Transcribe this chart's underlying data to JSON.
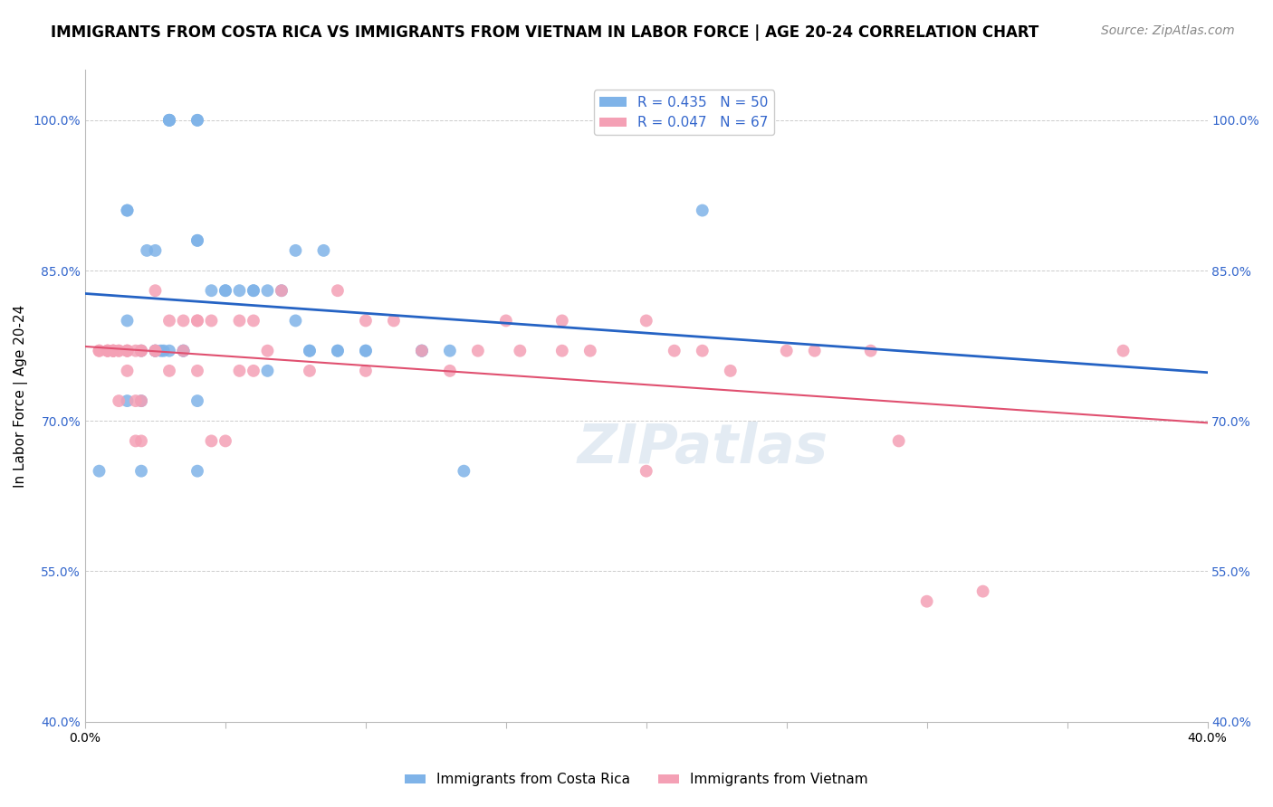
{
  "title": "IMMIGRANTS FROM COSTA RICA VS IMMIGRANTS FROM VIETNAM IN LABOR FORCE | AGE 20-24 CORRELATION CHART",
  "source": "Source: ZipAtlas.com",
  "xlabel": "",
  "ylabel": "In Labor Force | Age 20-24",
  "xlim": [
    0.0,
    0.4
  ],
  "ylim": [
    0.4,
    1.05
  ],
  "yticks": [
    0.4,
    0.55,
    0.7,
    0.85,
    1.0
  ],
  "ytick_labels": [
    "40.0%",
    "55.0%",
    "70.0%",
    "85.0%",
    "100.0%"
  ],
  "xticks": [
    0.0,
    0.05,
    0.1,
    0.15,
    0.2,
    0.25,
    0.3,
    0.35,
    0.4
  ],
  "xtick_labels": [
    "0.0%",
    "",
    "",
    "",
    "",
    "",
    "",
    "",
    "40.0%"
  ],
  "background_color": "#ffffff",
  "grid_color": "#cccccc",
  "watermark": "ZIPatlas",
  "costa_rica_color": "#7fb3e8",
  "vietnam_color": "#f4a0b5",
  "costa_rica_line_color": "#2563c4",
  "vietnam_line_color": "#e05070",
  "costa_rica_R": 0.435,
  "costa_rica_N": 50,
  "vietnam_R": 0.047,
  "vietnam_N": 67,
  "legend_label_cr": "Immigrants from Costa Rica",
  "legend_label_vn": "Immigrants from Vietnam",
  "costa_rica_x": [
    0.02,
    0.025,
    0.025,
    0.027,
    0.028,
    0.03,
    0.03,
    0.03,
    0.03,
    0.03,
    0.035,
    0.035,
    0.04,
    0.04,
    0.04,
    0.04,
    0.045,
    0.05,
    0.05,
    0.055,
    0.06,
    0.06,
    0.065,
    0.065,
    0.07,
    0.075,
    0.075,
    0.08,
    0.08,
    0.085,
    0.09,
    0.09,
    0.1,
    0.1,
    0.12,
    0.12,
    0.13,
    0.135,
    0.015,
    0.015,
    0.015,
    0.015,
    0.02,
    0.02,
    0.022,
    0.025,
    0.04,
    0.04,
    0.22,
    0.005
  ],
  "costa_rica_y": [
    0.77,
    0.77,
    0.77,
    0.77,
    0.77,
    1.0,
    1.0,
    1.0,
    1.0,
    0.77,
    0.77,
    0.77,
    0.88,
    0.88,
    1.0,
    1.0,
    0.83,
    0.83,
    0.83,
    0.83,
    0.83,
    0.83,
    0.83,
    0.75,
    0.83,
    0.87,
    0.8,
    0.77,
    0.77,
    0.87,
    0.77,
    0.77,
    0.77,
    0.77,
    0.77,
    0.77,
    0.77,
    0.65,
    0.91,
    0.91,
    0.8,
    0.72,
    0.72,
    0.65,
    0.87,
    0.87,
    0.72,
    0.65,
    0.91,
    0.65
  ],
  "vietnam_x": [
    0.005,
    0.005,
    0.008,
    0.008,
    0.008,
    0.01,
    0.01,
    0.01,
    0.01,
    0.012,
    0.012,
    0.012,
    0.015,
    0.015,
    0.015,
    0.015,
    0.018,
    0.018,
    0.018,
    0.02,
    0.02,
    0.02,
    0.02,
    0.025,
    0.025,
    0.025,
    0.03,
    0.03,
    0.035,
    0.035,
    0.04,
    0.04,
    0.04,
    0.045,
    0.045,
    0.05,
    0.055,
    0.055,
    0.06,
    0.06,
    0.065,
    0.07,
    0.08,
    0.09,
    0.1,
    0.1,
    0.11,
    0.12,
    0.13,
    0.14,
    0.15,
    0.155,
    0.17,
    0.17,
    0.18,
    0.2,
    0.2,
    0.21,
    0.22,
    0.23,
    0.25,
    0.26,
    0.28,
    0.29,
    0.3,
    0.32,
    0.37
  ],
  "vietnam_y": [
    0.77,
    0.77,
    0.77,
    0.77,
    0.77,
    0.77,
    0.77,
    0.77,
    0.77,
    0.77,
    0.72,
    0.77,
    0.77,
    0.77,
    0.77,
    0.75,
    0.77,
    0.72,
    0.68,
    0.77,
    0.77,
    0.72,
    0.68,
    0.83,
    0.77,
    0.77,
    0.8,
    0.75,
    0.8,
    0.77,
    0.8,
    0.8,
    0.75,
    0.8,
    0.68,
    0.68,
    0.8,
    0.75,
    0.8,
    0.75,
    0.77,
    0.83,
    0.75,
    0.83,
    0.8,
    0.75,
    0.8,
    0.77,
    0.75,
    0.77,
    0.8,
    0.77,
    0.8,
    0.77,
    0.77,
    0.65,
    0.8,
    0.77,
    0.77,
    0.75,
    0.77,
    0.77,
    0.77,
    0.68,
    0.52,
    0.53,
    0.77
  ],
  "title_fontsize": 12,
  "axis_label_fontsize": 11,
  "tick_fontsize": 10,
  "legend_fontsize": 11,
  "source_fontsize": 10,
  "marker_size": 10
}
